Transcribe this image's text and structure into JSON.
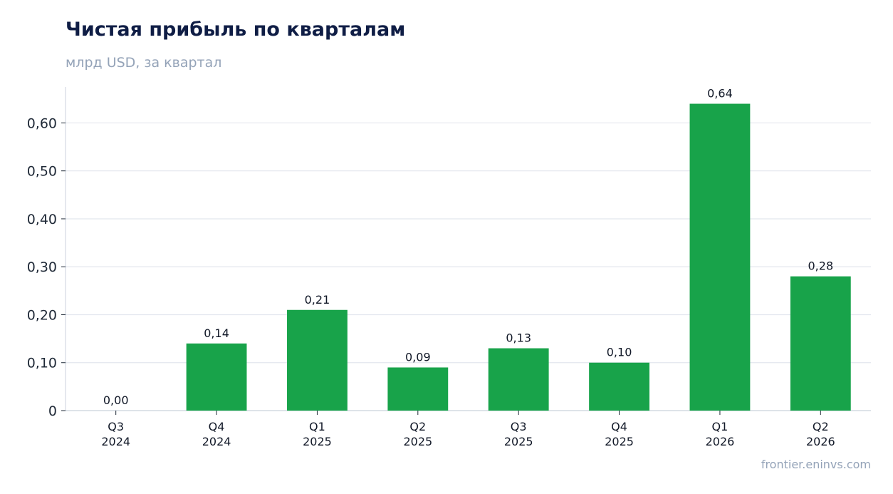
{
  "header": {
    "title": "Чистая прибыль по кварталам",
    "subtitle": "млрд USD, за квартал"
  },
  "footer": {
    "source": "frontier.eninvs.com"
  },
  "colors": {
    "bar": "#18a34a",
    "grid": "#e2e6ee",
    "axis": "#cbd2dc",
    "text": "#111827"
  },
  "chart_data": {
    "type": "bar",
    "title": "Чистая прибыль по кварталам",
    "subtitle": "млрд USD, за квартал",
    "categories": [
      [
        "Q3",
        "2024"
      ],
      [
        "Q4",
        "2024"
      ],
      [
        "Q1",
        "2025"
      ],
      [
        "Q2",
        "2025"
      ],
      [
        "Q3",
        "2025"
      ],
      [
        "Q4",
        "2025"
      ],
      [
        "Q1",
        "2026"
      ],
      [
        "Q2",
        "2026"
      ]
    ],
    "values": [
      0.0,
      0.14,
      0.21,
      0.09,
      0.13,
      0.1,
      0.64,
      0.28
    ],
    "data_labels": [
      "0,00",
      "0,14",
      "0,21",
      "0,09",
      "0,13",
      "0,10",
      "0,64",
      "0,28"
    ],
    "y_ticks": [
      0,
      0.1,
      0.2,
      0.3,
      0.4,
      0.5,
      0.6
    ],
    "y_tick_labels": [
      "0",
      "0,10",
      "0,20",
      "0,30",
      "0,40",
      "0,50",
      "0,60"
    ],
    "ylim": [
      0,
      0.675
    ],
    "grid": true,
    "legend": "none"
  }
}
